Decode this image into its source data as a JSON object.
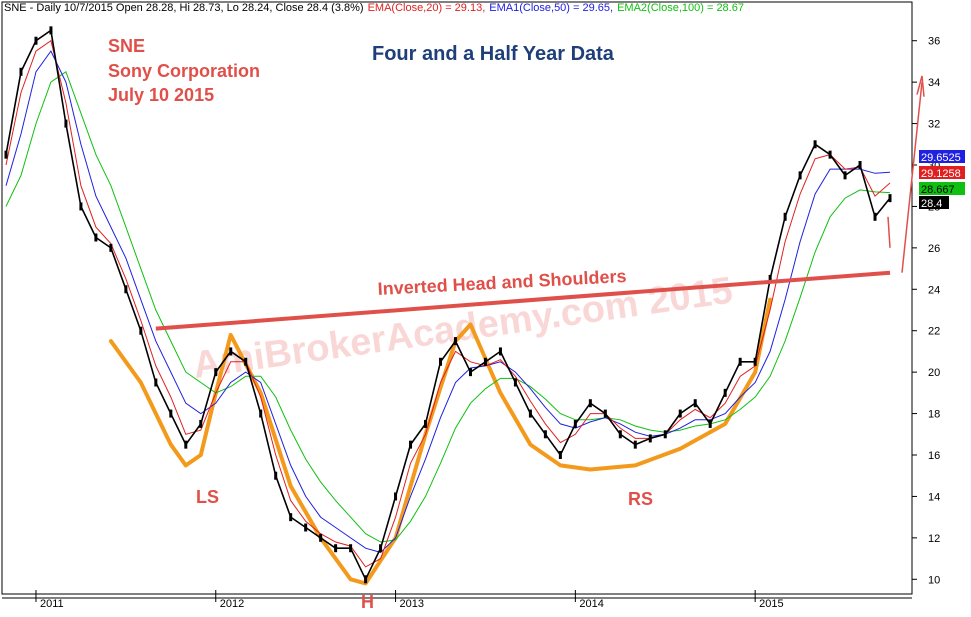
{
  "header": {
    "symbol_line": "SNE - Daily 10/7/2015 Open 28.28, Hi 28.73, Lo 28.24, Close 28.4 (3.8%)",
    "ema20": "EMA(Close,20) = 29.13,",
    "ema50": "EMA1(Close,50) = 29.65,",
    "ema100": "EMA2(Close,100) = 28.67"
  },
  "annotations": {
    "ticker": "SNE",
    "company": "Sony Corporation",
    "date": "July 10 2015",
    "title": "Four and a Half Year Data",
    "pattern": "Inverted Head and Shoulders",
    "ls": "LS",
    "h": "H",
    "rs": "RS",
    "watermark": "AmiBrokerAcademy.com 2015"
  },
  "colors": {
    "price": "#000000",
    "ema20": "#e02020",
    "ema50": "#2020e0",
    "ema100": "#10c010",
    "neckline": "#e0504a",
    "pattern_outline": "#f39a1c",
    "annotation_red": "#e0504a",
    "title_blue": "#1f3f7a"
  },
  "chart_data": {
    "type": "line",
    "title": "Four and a Half Year Data",
    "x_range": [
      "2010-11",
      "2015-10"
    ],
    "x_ticks": [
      "2011",
      "2012",
      "2013",
      "2014",
      "2015"
    ],
    "ylim": [
      9,
      37
    ],
    "y_ticks": [
      10,
      12,
      14,
      16,
      18,
      20,
      22,
      24,
      26,
      28,
      30,
      32,
      34,
      36
    ],
    "grid": false,
    "series": [
      {
        "name": "Close",
        "x": [
          "2010-11",
          "2010-12",
          "2011-01",
          "2011-02",
          "2011-03",
          "2011-04",
          "2011-05",
          "2011-06",
          "2011-07",
          "2011-08",
          "2011-09",
          "2011-10",
          "2011-11",
          "2011-12",
          "2012-01",
          "2012-02",
          "2012-03",
          "2012-04",
          "2012-05",
          "2012-06",
          "2012-07",
          "2012-08",
          "2012-09",
          "2012-10",
          "2012-11",
          "2012-12",
          "2013-01",
          "2013-02",
          "2013-03",
          "2013-04",
          "2013-05",
          "2013-06",
          "2013-07",
          "2013-08",
          "2013-09",
          "2013-10",
          "2013-11",
          "2013-12",
          "2014-01",
          "2014-02",
          "2014-03",
          "2014-04",
          "2014-05",
          "2014-06",
          "2014-07",
          "2014-08",
          "2014-09",
          "2014-10",
          "2014-11",
          "2014-12",
          "2015-01",
          "2015-02",
          "2015-03",
          "2015-04",
          "2015-05",
          "2015-06",
          "2015-07",
          "2015-08",
          "2015-09",
          "2015-10"
        ],
        "values": [
          30.5,
          34.5,
          36.0,
          36.5,
          32.0,
          28.0,
          26.5,
          26.0,
          24.0,
          22.0,
          19.5,
          18.0,
          16.5,
          17.5,
          20.0,
          21.0,
          20.5,
          18.0,
          15.0,
          13.0,
          12.5,
          12.0,
          11.5,
          11.5,
          10.0,
          11.5,
          14.0,
          16.5,
          17.5,
          20.5,
          21.5,
          20.0,
          20.5,
          21.0,
          19.5,
          18.0,
          17.0,
          16.0,
          17.5,
          18.5,
          18.0,
          17.0,
          16.5,
          16.8,
          17.0,
          18.0,
          18.5,
          17.5,
          19.0,
          20.5,
          20.5,
          24.5,
          27.5,
          29.5,
          31.0,
          30.5,
          29.5,
          30.0,
          27.5,
          28.4
        ]
      },
      {
        "name": "EMA(Close,20)",
        "values": [
          30.0,
          33.5,
          35.5,
          36.0,
          33.0,
          29.0,
          27.0,
          26.2,
          24.5,
          22.5,
          20.3,
          18.8,
          17.0,
          17.2,
          19.0,
          20.5,
          20.5,
          18.8,
          16.0,
          13.8,
          12.8,
          12.2,
          11.8,
          11.6,
          10.6,
          11.0,
          13.0,
          15.6,
          17.0,
          19.5,
          21.0,
          20.5,
          20.3,
          20.6,
          19.8,
          18.6,
          17.5,
          16.6,
          17.0,
          18.0,
          18.0,
          17.3,
          16.8,
          16.8,
          17.0,
          17.7,
          18.2,
          17.8,
          18.5,
          19.8,
          20.3,
          23.0,
          26.3,
          28.6,
          30.3,
          30.5,
          29.8,
          29.9,
          28.5,
          29.13
        ]
      },
      {
        "name": "EMA1(Close,50)",
        "values": [
          29.0,
          31.5,
          34.5,
          35.5,
          34.0,
          31.0,
          28.5,
          27.0,
          25.5,
          23.5,
          21.5,
          20.0,
          18.5,
          18.0,
          18.5,
          19.5,
          20.0,
          19.5,
          17.5,
          15.5,
          14.0,
          13.0,
          12.5,
          12.0,
          11.5,
          11.3,
          12.0,
          14.0,
          15.8,
          17.8,
          19.5,
          20.2,
          20.3,
          20.5,
          20.0,
          19.2,
          18.3,
          17.5,
          17.3,
          17.6,
          17.8,
          17.5,
          17.1,
          16.9,
          17.0,
          17.3,
          17.7,
          17.7,
          18.0,
          18.8,
          19.5,
          21.0,
          23.5,
          26.3,
          28.6,
          29.8,
          29.8,
          29.8,
          29.6,
          29.65
        ]
      },
      {
        "name": "EMA2(Close,100)",
        "values": [
          28.0,
          29.5,
          32.0,
          34.0,
          34.5,
          32.5,
          30.5,
          29.0,
          27.0,
          25.0,
          23.0,
          21.5,
          20.0,
          19.5,
          19.0,
          19.3,
          19.8,
          19.8,
          18.8,
          17.2,
          15.8,
          14.7,
          13.8,
          13.0,
          12.2,
          11.8,
          11.9,
          12.8,
          14.0,
          15.6,
          17.3,
          18.5,
          19.2,
          19.7,
          19.7,
          19.3,
          18.7,
          18.0,
          17.7,
          17.7,
          17.8,
          17.7,
          17.4,
          17.2,
          17.1,
          17.2,
          17.4,
          17.5,
          17.7,
          18.2,
          18.8,
          19.8,
          21.5,
          23.6,
          25.8,
          27.5,
          28.4,
          28.8,
          28.7,
          28.67
        ]
      }
    ],
    "last_values": {
      "ema50": "29.6525",
      "ema20": "29.1258",
      "ema100": "28.667",
      "close": "28.4"
    },
    "neckline": {
      "x": [
        "2011-09",
        "2015-10"
      ],
      "y": [
        22.1,
        24.8
      ]
    }
  }
}
